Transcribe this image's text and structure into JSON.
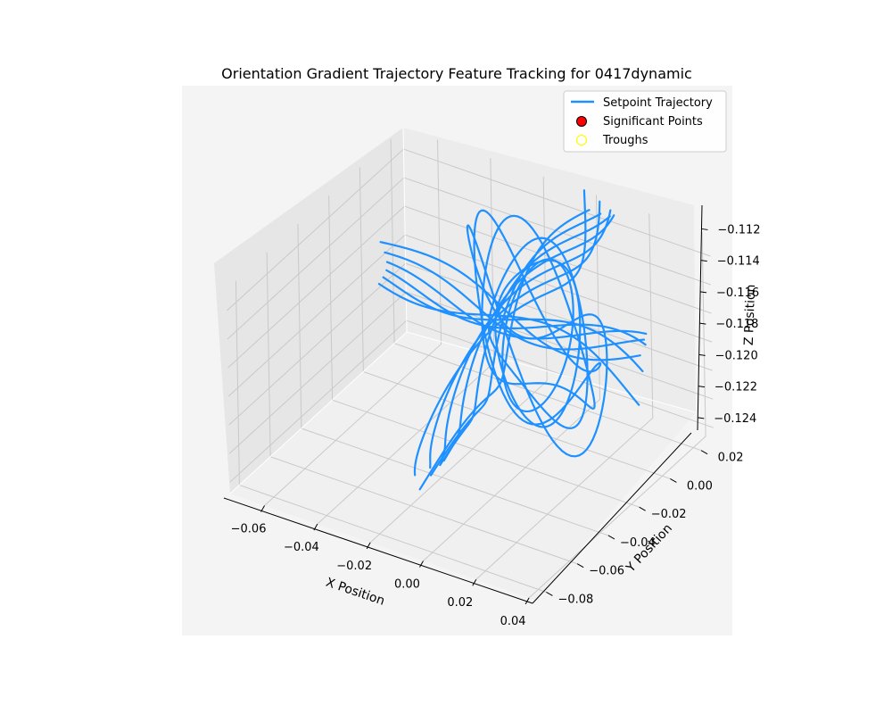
{
  "chart_data": {
    "type": "line",
    "projection": "3d",
    "title": "Orientation Gradient Trajectory Feature Tracking for 0417dynamic",
    "xlabel": "X Position",
    "ylabel": "Y Position",
    "zlabel": "Z Position",
    "xticks": [
      "−0.06",
      "−0.04",
      "−0.02",
      "0.00",
      "0.02",
      "0.04"
    ],
    "yticks": [
      "−0.08",
      "−0.06",
      "−0.04",
      "−0.02",
      "0.00",
      "0.02"
    ],
    "zticks": [
      "−0.124",
      "−0.122",
      "−0.120",
      "−0.118",
      "−0.116",
      "−0.114",
      "−0.112"
    ],
    "xlim": [
      -0.073,
      0.043
    ],
    "ylim": [
      -0.086,
      0.028
    ],
    "zlim": [
      -0.1248,
      -0.1105
    ],
    "grid": true,
    "legend_position": "top-right",
    "legend": [
      {
        "label": "Setpoint Trajectory",
        "kind": "line",
        "color": "#1e90ff"
      },
      {
        "label": "Significant Points",
        "kind": "marker",
        "color": "#ff0000",
        "edge": "#000000"
      },
      {
        "label": "Troughs",
        "kind": "marker",
        "color": "none",
        "edge": "#ffff00"
      }
    ],
    "series": [
      {
        "name": "Setpoint Trajectory",
        "color": "#1e90ff",
        "description": "dense multi-lap closed-loop 3D trajectory",
        "points": [
          [
            -0.01,
            0.01,
            -0.1188
          ],
          [
            -0.004,
            0.012,
            -0.1172
          ],
          [
            0.004,
            0.011,
            -0.1158
          ],
          [
            0.01,
            0.006,
            -0.115
          ],
          [
            0.012,
            -0.001,
            -0.115
          ],
          [
            0.01,
            -0.008,
            -0.1158
          ],
          [
            0.004,
            -0.012,
            -0.1172
          ],
          [
            -0.004,
            -0.011,
            -0.1186
          ],
          [
            -0.01,
            -0.006,
            -0.1196
          ],
          [
            -0.012,
            0.001,
            -0.1196
          ],
          [
            -0.01,
            0.01,
            -0.1188
          ],
          [
            -0.005,
            -0.065,
            -0.1212
          ],
          [
            -0.004,
            -0.04,
            -0.1196
          ],
          [
            -0.002,
            -0.015,
            -0.1178
          ],
          [
            0.0,
            0.005,
            -0.116
          ],
          [
            0.002,
            0.02,
            -0.1138
          ],
          [
            0.003,
            0.03,
            -0.112
          ],
          [
            -0.058,
            0.006,
            -0.1161
          ],
          [
            -0.04,
            0.003,
            -0.1158
          ],
          [
            -0.02,
            0.001,
            -0.1157
          ],
          [
            0.0,
            -0.001,
            -0.1158
          ],
          [
            0.02,
            -0.004,
            -0.116
          ],
          [
            0.034,
            -0.006,
            -0.1163
          ]
        ]
      }
    ],
    "markers": {
      "Significant Points": [],
      "Troughs": []
    }
  }
}
